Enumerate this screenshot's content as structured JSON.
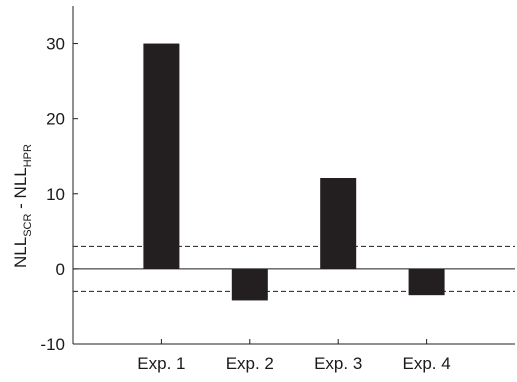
{
  "chart_data": {
    "type": "bar",
    "categories": [
      "Exp. 1",
      "Exp. 2",
      "Exp. 3",
      "Exp. 4"
    ],
    "values": [
      30.0,
      -4.2,
      12.1,
      -3.5
    ],
    "ylabel_main_1": "NLL",
    "ylabel_sub_1": "SCR",
    "ylabel_sep": " - ",
    "ylabel_main_2": "NLL",
    "ylabel_sub_2": "HPR",
    "ylim": [
      -10,
      35
    ],
    "yticks": [
      -10,
      0,
      10,
      20,
      30
    ],
    "ytick_labels": [
      "-10",
      "0",
      "10",
      "20",
      "30"
    ],
    "reference_lines": {
      "solid": 0,
      "dashed": [
        3,
        -3
      ]
    },
    "grid": false,
    "bar_color": "#231f20"
  }
}
